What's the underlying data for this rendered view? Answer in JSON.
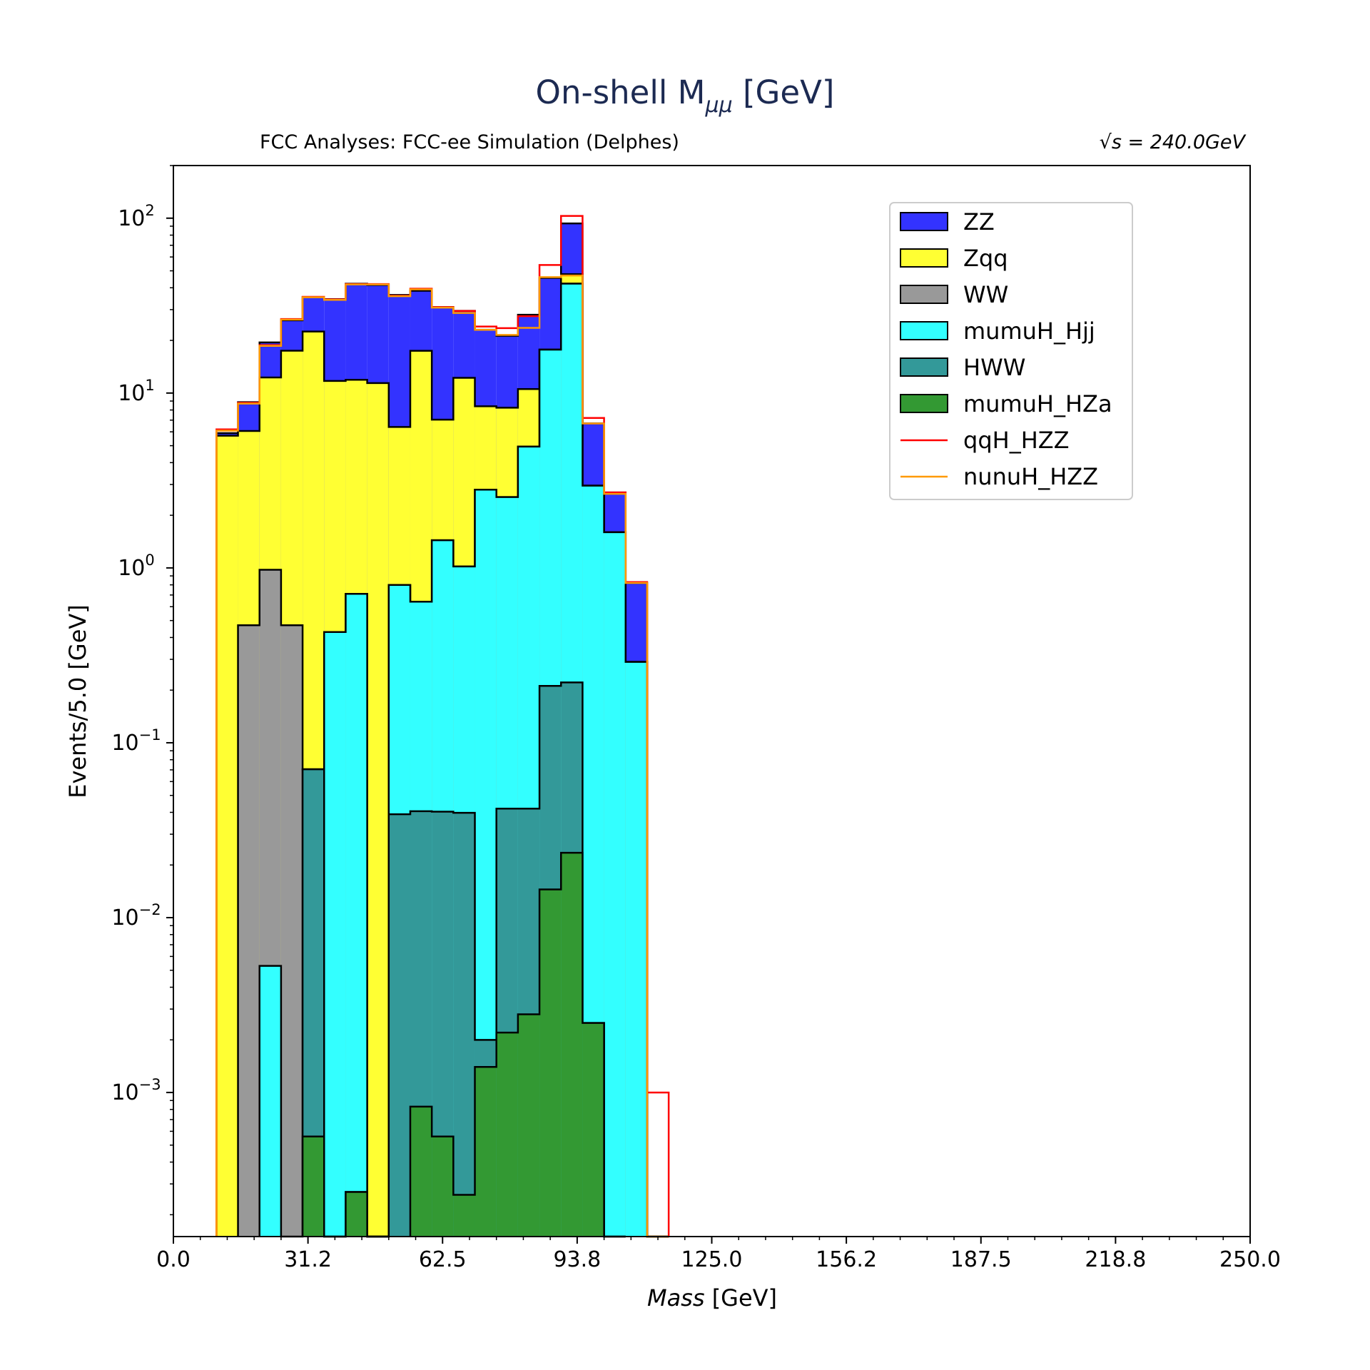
{
  "chart_data": {
    "type": "bar",
    "title": "On-shell M",
    "title_sub": "μμ",
    "title_suffix": " [GeV]",
    "subtitle_left": "FCC Analyses: FCC-ee Simulation (Delphes)",
    "subtitle_right": "√s = 240.0GeV",
    "xlabel": "Mass [GeV]",
    "ylabel": "Events/5.0 [GeV]",
    "yscale": "log",
    "xlim": [
      0,
      250
    ],
    "ylim": [
      0.00015,
      200
    ],
    "xticks": [
      "0.0",
      "31.2",
      "62.5",
      "93.8",
      "125.0",
      "156.2",
      "187.5",
      "218.8",
      "250.0"
    ],
    "yticks": [
      "10^-3",
      "10^-2",
      "10^-1",
      "10^0",
      "10^1",
      "10^2"
    ],
    "legend_position": "upper right",
    "bin_edges": [
      10,
      15,
      20,
      25,
      30,
      35,
      40,
      45,
      50,
      55,
      60,
      65,
      70,
      75,
      80,
      85,
      90,
      95,
      100,
      105,
      110,
      115
    ],
    "stacked_series": [
      {
        "name": "mumuH_HZa",
        "color": "#339933",
        "values": [
          0,
          0,
          0,
          0,
          0.00056,
          0,
          0.00027,
          0,
          0,
          0.00083,
          0.00056,
          0.00026,
          0.0014,
          0.0022,
          0.0028,
          0.0145,
          0.0235,
          0.0025,
          0,
          0,
          0
        ]
      },
      {
        "name": "HWW",
        "color": "#339999",
        "values": [
          0,
          0,
          0,
          0,
          0.07,
          0,
          0,
          0,
          0.039,
          0.0398,
          0.0398,
          0.0395,
          0.0006,
          0.0398,
          0.0392,
          0.197,
          0.198,
          0,
          0,
          0,
          0
        ]
      },
      {
        "name": "mumuH_Hjj",
        "color": "#33ffff",
        "values": [
          0,
          0,
          0.0053,
          0,
          0,
          0.43,
          0.71,
          0,
          0.76,
          0.6,
          1.4,
          0.98,
          2.8,
          2.5,
          4.9,
          17.5,
          42,
          2.95,
          1.6,
          0.29,
          0
        ]
      },
      {
        "name": "WW",
        "color": "#999999",
        "values": [
          0,
          0.47,
          0.97,
          0.47,
          0,
          0,
          0,
          0,
          0,
          0,
          0,
          0,
          0,
          0,
          0,
          0,
          0,
          0,
          0,
          0,
          0
        ]
      },
      {
        "name": "Zqq",
        "color": "#ffff33",
        "values": [
          5.7,
          5.6,
          11.3,
          17,
          22.4,
          11.3,
          11.2,
          11.4,
          5.6,
          16.8,
          5.6,
          11.2,
          5.6,
          5.7,
          5.6,
          0,
          5.6,
          0,
          0,
          0,
          0
        ]
      },
      {
        "name": "ZZ",
        "color": "#3333ff",
        "values": [
          0.2,
          2.8,
          7.2,
          8.6,
          12.9,
          22.7,
          30.3,
          30.1,
          30,
          21,
          24,
          17.3,
          14.6,
          13,
          17.5,
          27.8,
          45.5,
          3.75,
          1.1,
          0.53,
          0
        ]
      }
    ],
    "line_series": [
      {
        "name": "qqH_HZZ",
        "color": "#ff0000",
        "values": [
          6.2,
          8.8,
          18.8,
          26.5,
          35.5,
          34.3,
          42,
          42,
          36,
          39.5,
          31,
          29.5,
          24,
          23.5,
          27.5,
          54,
          103,
          7.2,
          2.7,
          0.83,
          0.001
        ]
      },
      {
        "name": "nunuH_HZZ",
        "color": "#ff9900",
        "values": [
          6.1,
          8.7,
          18.6,
          26.3,
          35.3,
          34.1,
          41.8,
          41.8,
          35.8,
          39.2,
          30.8,
          28.7,
          23,
          21.5,
          23.6,
          46,
          47,
          6.7,
          2.65,
          0.82,
          0
        ]
      }
    ],
    "legend": [
      "ZZ",
      "Zqq",
      "WW",
      "mumuH_Hjj",
      "HWW",
      "mumuH_HZa",
      "qqH_HZZ",
      "nunuH_HZZ"
    ]
  }
}
